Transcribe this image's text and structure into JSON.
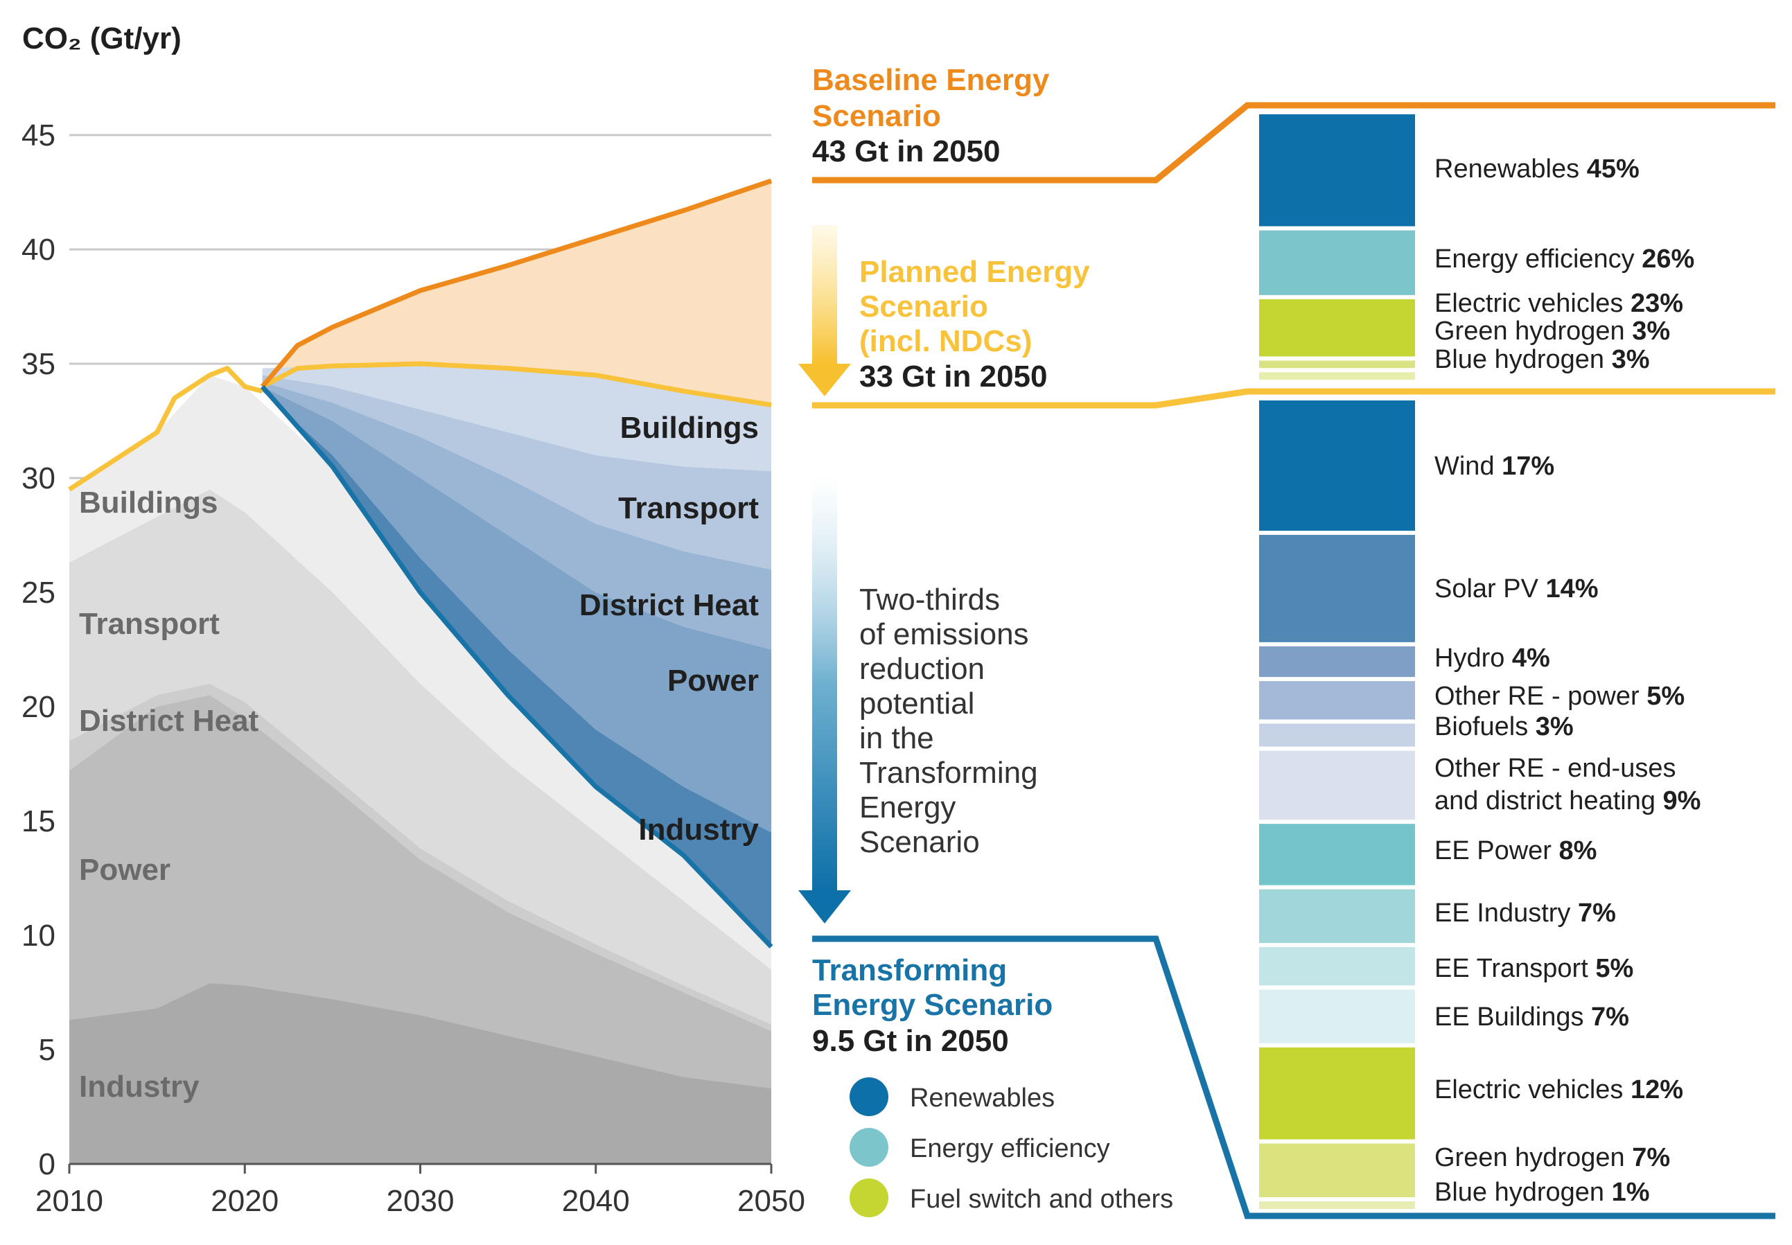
{
  "chart_data": {
    "type": "area",
    "ylabel": "CO₂ (Gt/yr)",
    "ylim": [
      0,
      45
    ],
    "yticks": [
      "0",
      "5",
      "10",
      "15",
      "20",
      "25",
      "30",
      "35",
      "40",
      "45"
    ],
    "xticks": [
      "2010",
      "2020",
      "2030",
      "2040",
      "2050"
    ],
    "x": [
      2010,
      2015,
      2017,
      2020,
      2021,
      2023,
      2025,
      2030,
      2035,
      2040,
      2045,
      2050
    ],
    "historical": {
      "x": [
        2010,
        2013,
        2015,
        2016,
        2017,
        2018,
        2019,
        2020,
        2021
      ],
      "total": [
        29.5,
        31.0,
        32.0,
        33.5,
        34.0,
        34.5,
        34.8,
        34.0,
        33.8
      ]
    },
    "baseline": {
      "name": "Baseline Energy Scenario",
      "x": [
        2021,
        2023,
        2025,
        2030,
        2035,
        2040,
        2045,
        2050
      ],
      "values": [
        34.0,
        35.8,
        36.6,
        38.2,
        39.3,
        40.5,
        41.7,
        43.0
      ]
    },
    "planned": {
      "name": "Planned Energy Scenario (incl. NDCs)",
      "x": [
        2021,
        2023,
        2025,
        2030,
        2035,
        2040,
        2045,
        2050
      ],
      "values": [
        34.0,
        34.8,
        34.9,
        35.0,
        34.8,
        34.5,
        33.8,
        33.2
      ]
    },
    "transforming": {
      "name": "Transforming Energy Scenario",
      "x": [
        2021,
        2025,
        2030,
        2035,
        2040,
        2045,
        2050
      ],
      "values": [
        34.0,
        30.5,
        25.0,
        20.5,
        16.5,
        13.5,
        9.5
      ]
    },
    "grey_sectors": [
      {
        "name": "Industry",
        "x": [
          2010,
          2015,
          2018,
          2020,
          2025,
          2030,
          2035,
          2040,
          2045,
          2050
        ],
        "values": [
          6.3,
          6.8,
          7.9,
          7.8,
          7.2,
          6.5,
          5.6,
          4.7,
          3.8,
          3.3
        ]
      },
      {
        "name": "Power",
        "x": [
          2010,
          2015,
          2018,
          2020,
          2025,
          2030,
          2035,
          2040,
          2045,
          2050
        ],
        "values": [
          17.2,
          20.0,
          20.5,
          19.5,
          16.5,
          13.3,
          11.0,
          9.2,
          7.5,
          5.8
        ]
      },
      {
        "name": "District Heat",
        "x": [
          2010,
          2015,
          2018,
          2020,
          2025,
          2030,
          2035,
          2040,
          2045,
          2050
        ],
        "values": [
          18.5,
          20.5,
          21.0,
          20.2,
          17.0,
          13.8,
          11.5,
          9.6,
          7.8,
          6.1
        ]
      },
      {
        "name": "Transport",
        "x": [
          2010,
          2015,
          2018,
          2020,
          2025,
          2030,
          2035,
          2040,
          2045,
          2050
        ],
        "values": [
          26.3,
          28.3,
          29.5,
          28.5,
          25.0,
          21.0,
          17.5,
          14.5,
          11.5,
          8.5
        ]
      },
      {
        "name": "Buildings",
        "x": [
          2010,
          2015,
          2018,
          2020,
          2025,
          2030,
          2035,
          2040,
          2045,
          2050
        ],
        "values": [
          29.5,
          32.0,
          34.5,
          34.0,
          30.5,
          25.0,
          20.5,
          16.5,
          13.5,
          9.5
        ]
      }
    ],
    "blue_wedges": [
      {
        "name": "Industry",
        "x": [
          2021,
          2025,
          2030,
          2035,
          2040,
          2045,
          2050
        ],
        "values": [
          33.8,
          31.0,
          26.5,
          22.5,
          19.0,
          16.5,
          14.5
        ]
      },
      {
        "name": "Power",
        "x": [
          2021,
          2025,
          2030,
          2035,
          2040,
          2045,
          2050
        ],
        "values": [
          34.0,
          32.5,
          30.0,
          27.5,
          25.0,
          23.5,
          22.5
        ]
      },
      {
        "name": "District Heat",
        "x": [
          2021,
          2025,
          2030,
          2035,
          2040,
          2045,
          2050
        ],
        "values": [
          34.2,
          33.3,
          31.8,
          30.0,
          28.0,
          26.8,
          26.0
        ]
      },
      {
        "name": "Transport",
        "x": [
          2021,
          2025,
          2030,
          2035,
          2040,
          2045,
          2050
        ],
        "values": [
          34.5,
          34.0,
          33.0,
          32.0,
          31.0,
          30.5,
          30.3
        ]
      },
      {
        "name": "Buildings",
        "x": [
          2021,
          2025,
          2030,
          2035,
          2040,
          2045,
          2050
        ],
        "values": [
          34.8,
          34.9,
          35.0,
          34.8,
          34.5,
          33.8,
          33.2
        ]
      }
    ],
    "colors": {
      "baseline": "#ee8a1b",
      "planned": "#f8c23a",
      "transforming": "#1873a6",
      "baseline_fill": "#fbe1c1",
      "grey": [
        "#aaaaaa",
        "#bdbdbd",
        "#cdcdcd",
        "#dcdcdc",
        "#ededed"
      ],
      "blue": [
        "#4f86b4",
        "#7fa4c8",
        "#9bb6d4",
        "#b6c8e0",
        "#cfdaea"
      ]
    }
  },
  "left_labels": {
    "grey": [
      "Buildings",
      "Transport",
      "District Heat",
      "Power",
      "Industry"
    ],
    "blue": [
      "Buildings",
      "Transport",
      "District Heat",
      "Power",
      "Industry"
    ]
  },
  "scenarios": {
    "baseline": {
      "title_1": "Baseline Energy",
      "title_2": "Scenario",
      "value": "43 Gt in 2050"
    },
    "planned": {
      "title_1": "Planned Energy",
      "title_2": "Scenario",
      "title_3": "(incl. NDCs)",
      "value": "33 Gt in 2050"
    },
    "transforming": {
      "title_1": "Transforming",
      "title_2": "Energy Scenario",
      "value": "9.5 Gt in 2050"
    }
  },
  "note_lines": [
    "Two-thirds",
    "of emissions",
    "reduction",
    "potential",
    "in the",
    "Transforming",
    "Energy",
    "Scenario"
  ],
  "legend": [
    {
      "label": "Renewables",
      "color": "#0e70a8"
    },
    {
      "label": "Energy efficiency",
      "color": "#7cc6cb"
    },
    {
      "label": "Fuel switch and others",
      "color": "#c5d531"
    }
  ],
  "upper_bar": [
    {
      "label": "Renewables ",
      "pct": "45%",
      "value": 45,
      "color": "#0e70a8"
    },
    {
      "label": "Energy efficiency ",
      "pct": "26%",
      "value": 26,
      "color": "#7cc6cb"
    },
    {
      "label": "Electric vehicles ",
      "pct": "23%",
      "value": 23,
      "color": "#c5d531"
    },
    {
      "label": "Green hydrogen ",
      "pct": "3%",
      "value": 3,
      "color": "#dae384"
    },
    {
      "label": "Blue hydrogen ",
      "pct": "3%",
      "value": 3,
      "color": "#e7eeab"
    }
  ],
  "lower_bar": [
    {
      "label": "Wind ",
      "pct": "17%",
      "value": 17,
      "color": "#0e70a8"
    },
    {
      "label": "Solar PV ",
      "pct": "14%",
      "value": 14,
      "color": "#4f88b4"
    },
    {
      "label": "Hydro ",
      "pct": "4%",
      "value": 4,
      "color": "#7f9fc6"
    },
    {
      "label": "Other RE - power ",
      "pct": "5%",
      "value": 5,
      "color": "#a4b9d8"
    },
    {
      "label": "Biofuels ",
      "pct": "3%",
      "value": 3,
      "color": "#c6d2e6"
    },
    {
      "label": "Other RE - end-uses",
      "label_2": "and district heating ",
      "pct": "9%",
      "value": 9,
      "color": "#dbe0ee"
    },
    {
      "label": "EE Power ",
      "pct": "8%",
      "value": 8,
      "color": "#74c5cb"
    },
    {
      "label": "EE Industry ",
      "pct": "7%",
      "value": 7,
      "color": "#a1d6da"
    },
    {
      "label": "EE Transport ",
      "pct": "5%",
      "value": 5,
      "color": "#c2e5e8"
    },
    {
      "label": "EE Buildings ",
      "pct": "7%",
      "value": 7,
      "color": "#dcf0f2"
    },
    {
      "label": "Electric vehicles ",
      "pct": "12%",
      "value": 12,
      "color": "#c5d531"
    },
    {
      "label": "Green  hydrogen ",
      "pct": "7%",
      "value": 7,
      "color": "#dbe37f"
    },
    {
      "label": "Blue hydrogen ",
      "pct": "1%",
      "value": 1,
      "color": "#e8eeb3"
    }
  ]
}
